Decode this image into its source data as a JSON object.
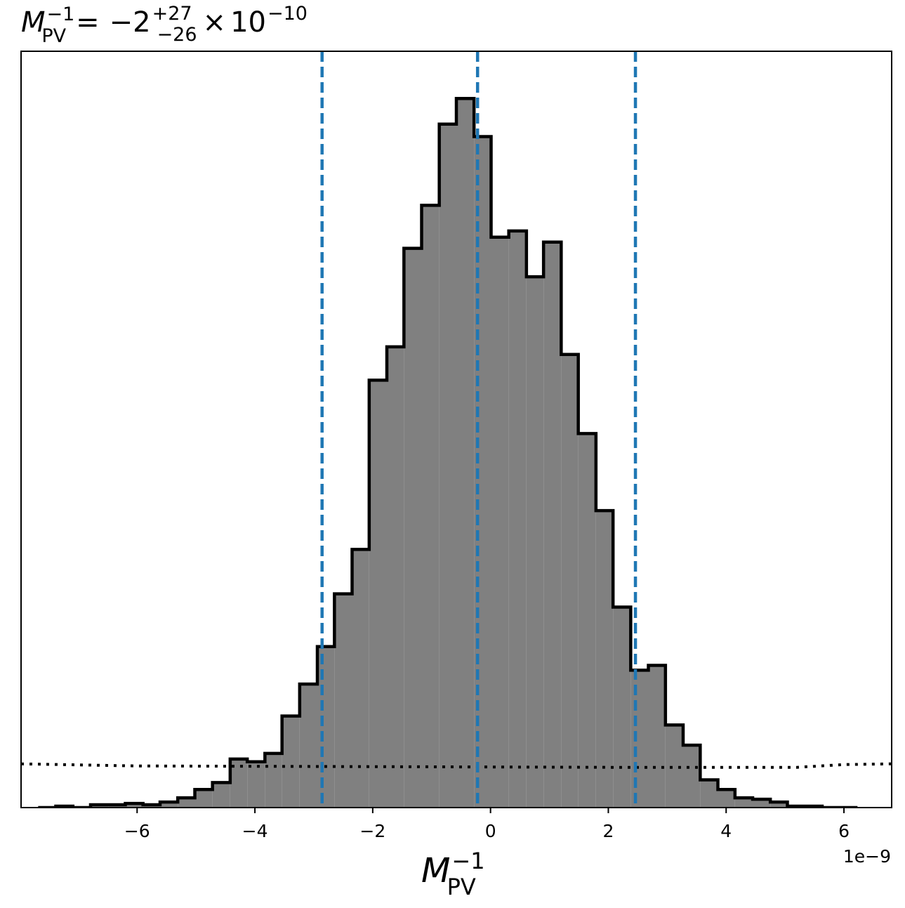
{
  "chart_data": {
    "type": "histogram",
    "title": {
      "symbol": "M",
      "symbol_sup": "−1",
      "symbol_sub": "PV",
      "equals": "=",
      "value": "−2",
      "upper": "+27",
      "lower": "−26",
      "times": "×",
      "mantissa": "10",
      "exponent": "−10"
    },
    "xlabel": {
      "symbol": "M",
      "sup": "−1",
      "sub": "PV"
    },
    "x_offset_label": "1e−9",
    "xlim": [
      -7.97,
      6.81
    ],
    "ylim": [
      0,
      1.09
    ],
    "xticks": [
      -6,
      -4,
      -2,
      0,
      2,
      4,
      6
    ],
    "xtick_labels": [
      "−6",
      "−4",
      "−2",
      "0",
      "2",
      "4",
      "6"
    ],
    "y_ticks_shown": false,
    "bin_edges": [
      -7.68,
      -7.38,
      -7.09,
      -6.79,
      -6.49,
      -6.2,
      -5.9,
      -5.61,
      -5.31,
      -5.02,
      -4.72,
      -4.42,
      -4.13,
      -3.83,
      -3.54,
      -3.24,
      -2.94,
      -2.65,
      -2.35,
      -2.06,
      -1.76,
      -1.47,
      -1.17,
      -0.87,
      -0.58,
      -0.28,
      0.01,
      0.31,
      0.61,
      0.9,
      1.2,
      1.49,
      1.79,
      2.08,
      2.38,
      2.68,
      2.97,
      3.27,
      3.56,
      3.86,
      4.15,
      4.45,
      4.75,
      5.04,
      5.34,
      5.63,
      5.93,
      6.23
    ],
    "counts": [
      0.0,
      0.002,
      0.0,
      0.004,
      0.004,
      0.006,
      0.004,
      0.008,
      0.014,
      0.026,
      0.036,
      0.07,
      0.066,
      0.078,
      0.132,
      0.178,
      0.232,
      0.308,
      0.372,
      0.616,
      0.664,
      0.806,
      0.868,
      0.985,
      1.022,
      0.967,
      0.822,
      0.831,
      0.765,
      0.815,
      0.653,
      0.539,
      0.428,
      0.289,
      0.198,
      0.205,
      0.119,
      0.09,
      0.04,
      0.026,
      0.014,
      0.012,
      0.008,
      0.002,
      0.002,
      0.0,
      0.0
    ],
    "quantile_lines": [
      -2.86,
      -0.22,
      2.46
    ],
    "prior_line": [
      [
        -7.97,
        0.063
      ],
      [
        -6.0,
        0.06
      ],
      [
        -2.0,
        0.059
      ],
      [
        2.0,
        0.058
      ],
      [
        5.2,
        0.058
      ],
      [
        6.0,
        0.062
      ],
      [
        6.81,
        0.063
      ]
    ],
    "histogram_fill": "#808080",
    "histogram_edge": "#000000",
    "quantile_color": "#1f77b4",
    "prior_color": "#000000"
  }
}
